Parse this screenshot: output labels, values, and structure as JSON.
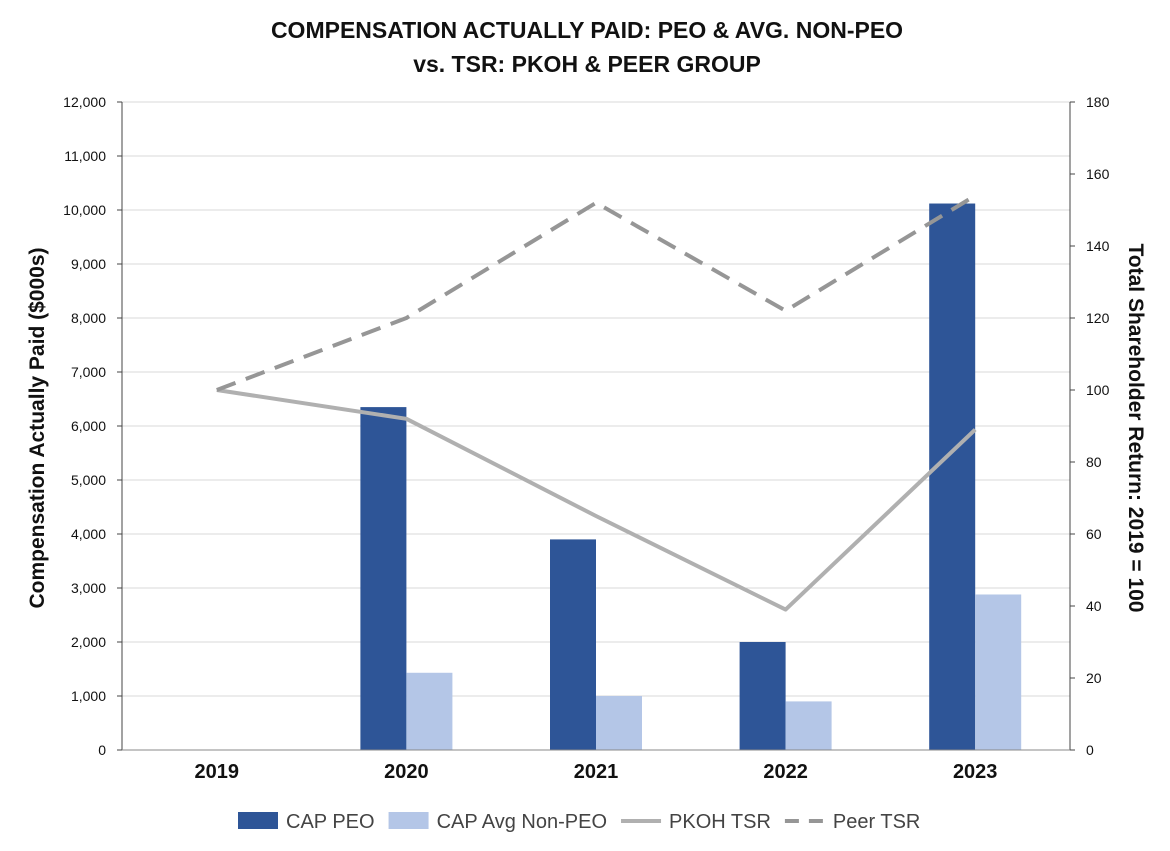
{
  "chart_data": {
    "type": "bar+line",
    "title_lines": [
      "COMPENSATION ACTUALLY PAID: PEO & AVG. NON-PEO",
      "vs. TSR: PKOH & PEER GROUP"
    ],
    "categories": [
      "2019",
      "2020",
      "2021",
      "2022",
      "2023"
    ],
    "ylabel_left": "Compensation Actually Paid ($000s)",
    "ylabel_right": "Total Shareholder Return: 2019 = 100",
    "ylim_left": [
      0,
      12000
    ],
    "ylim_right": [
      0,
      180
    ],
    "yticks_left": [
      "0",
      "1,000",
      "2,000",
      "3,000",
      "4,000",
      "5,000",
      "6,000",
      "7,000",
      "8,000",
      "9,000",
      "10,000",
      "11,000",
      "12,000"
    ],
    "yticks_right": [
      "0",
      "20",
      "40",
      "60",
      "80",
      "100",
      "120",
      "140",
      "160",
      "180"
    ],
    "bar_series": [
      {
        "name": "CAP PEO",
        "color": "#2e5597",
        "values": [
          null,
          6350,
          3900,
          2000,
          10120
        ]
      },
      {
        "name": "CAP Avg Non-PEO",
        "color": "#b4c6e7",
        "values": [
          null,
          1430,
          1000,
          900,
          2880
        ]
      }
    ],
    "line_series": [
      {
        "name": "PKOH TSR",
        "color": "#b0b0b0",
        "style": "solid",
        "values": [
          100,
          92,
          65,
          39,
          89
        ]
      },
      {
        "name": "Peer TSR",
        "color": "#969696",
        "style": "dashed",
        "values": [
          100,
          120,
          152,
          122,
          154
        ]
      }
    ],
    "grid": true,
    "legend_position": "bottom"
  }
}
